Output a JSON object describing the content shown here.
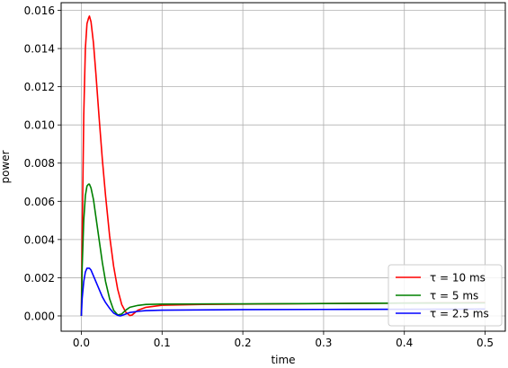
{
  "chart_data": {
    "type": "line",
    "title": "",
    "xlabel": "time",
    "ylabel": "power",
    "xlim": [
      -0.025,
      0.525
    ],
    "ylim": [
      -0.0008,
      0.0164
    ],
    "grid": true,
    "legend": "bottom-right",
    "x_ticks": [
      "0.0",
      "0.1",
      "0.2",
      "0.3",
      "0.4",
      "0.5"
    ],
    "y_ticks": [
      "0.000",
      "0.002",
      "0.004",
      "0.006",
      "0.008",
      "0.010",
      "0.012",
      "0.014",
      "0.016"
    ],
    "series": [
      {
        "name": "τ = 10 ms",
        "color": "#ff0000",
        "x": [
          0,
          0.001,
          0.003,
          0.005,
          0.007,
          0.009,
          0.01,
          0.012,
          0.015,
          0.018,
          0.022,
          0.026,
          0.03,
          0.035,
          0.04,
          0.045,
          0.05,
          0.055,
          0.06,
          0.063,
          0.067,
          0.07,
          0.08,
          0.1,
          0.15,
          0.2,
          0.3,
          0.4,
          0.5
        ],
        "y": [
          0,
          0.004,
          0.0105,
          0.014,
          0.0153,
          0.0156,
          0.0157,
          0.0154,
          0.0143,
          0.0127,
          0.0104,
          0.0082,
          0.0063,
          0.0042,
          0.0026,
          0.0014,
          0.0006,
          0.0002,
          2e-05,
          5e-05,
          0.0002,
          0.0003,
          0.00045,
          0.00056,
          0.0006,
          0.00062,
          0.00065,
          0.00067,
          0.0007
        ]
      },
      {
        "name": "τ = 5 ms",
        "color": "#008000",
        "x": [
          0,
          0.001,
          0.003,
          0.005,
          0.007,
          0.009,
          0.01,
          0.012,
          0.015,
          0.018,
          0.022,
          0.026,
          0.03,
          0.035,
          0.04,
          0.045,
          0.05,
          0.055,
          0.06,
          0.07,
          0.08,
          0.1,
          0.2,
          0.3,
          0.4,
          0.5
        ],
        "y": [
          0,
          0.0025,
          0.005,
          0.0063,
          0.0068,
          0.0069,
          0.0069,
          0.0067,
          0.0061,
          0.0052,
          0.004,
          0.0028,
          0.0018,
          0.0009,
          0.0003,
          5e-05,
          0.0001,
          0.0003,
          0.00045,
          0.00055,
          0.0006,
          0.00062,
          0.00063,
          0.00065,
          0.00067,
          0.00068
        ]
      },
      {
        "name": "τ = 2.5 ms",
        "color": "#0000ff",
        "x": [
          0,
          0.001,
          0.003,
          0.005,
          0.007,
          0.009,
          0.01,
          0.012,
          0.015,
          0.018,
          0.022,
          0.026,
          0.03,
          0.035,
          0.04,
          0.045,
          0.048,
          0.05,
          0.055,
          0.06,
          0.07,
          0.08,
          0.1,
          0.2,
          0.3,
          0.4,
          0.5
        ],
        "y": [
          0,
          0.0009,
          0.0018,
          0.0023,
          0.0025,
          0.0025,
          0.0025,
          0.0024,
          0.0021,
          0.0018,
          0.0014,
          0.001,
          0.0007,
          0.0004,
          0.00015,
          3e-05,
          0.0,
          2e-05,
          0.0001,
          0.00018,
          0.00024,
          0.00028,
          0.0003,
          0.00033,
          0.00034,
          0.00035,
          0.00036
        ]
      }
    ]
  }
}
